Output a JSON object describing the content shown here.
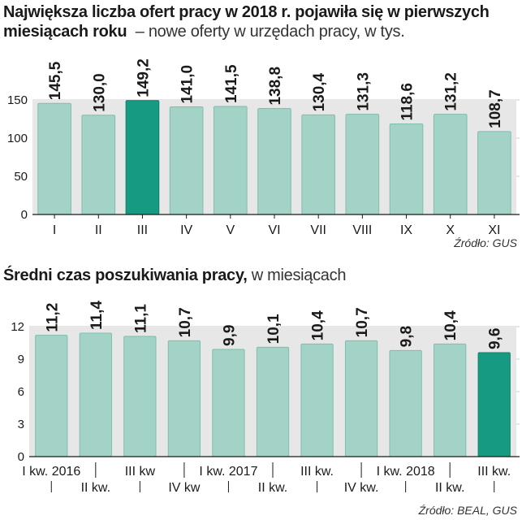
{
  "chart_data": [
    {
      "type": "bar",
      "title": "Największa liczba ofert pracy w 2018 r. pojawiła się w pierwszych miesiącach roku",
      "subtitle": "– nowe oferty w urzędach pracy, w tys.",
      "categories": [
        "I",
        "II",
        "III",
        "IV",
        "V",
        "VI",
        "VII",
        "VIII",
        "IX",
        "X",
        "XI"
      ],
      "values": [
        145.5,
        130.0,
        149.2,
        141.0,
        141.5,
        138.8,
        130.4,
        131.3,
        118.6,
        131.2,
        108.7
      ],
      "value_labels": [
        "145,5",
        "130,0",
        "149,2",
        "141,0",
        "141,5",
        "138,8",
        "130,4",
        "131,3",
        "118,6",
        "131,2",
        "108,7"
      ],
      "highlight_index": 2,
      "yticks": [
        0,
        50,
        100,
        150
      ],
      "ylim": [
        0,
        150
      ],
      "source": "Źródło: GUS"
    },
    {
      "type": "bar",
      "title": "Średni czas poszukiwania pracy,",
      "subtitle": "w miesiącach",
      "categories": [
        "I kw. 2016",
        "II kw.",
        "III kw",
        "IV kw",
        "I kw. 2017",
        "II kw.",
        "III kw.",
        "IV kw.",
        "I kw. 2018",
        "II kw.",
        "III kw."
      ],
      "values": [
        11.2,
        11.4,
        11.1,
        10.7,
        9.9,
        10.1,
        10.4,
        10.7,
        9.8,
        10.4,
        9.6
      ],
      "value_labels": [
        "11,2",
        "11,4",
        "11,1",
        "10,7",
        "9,9",
        "10,1",
        "10,4",
        "10,7",
        "9,8",
        "10,4",
        "9,6"
      ],
      "highlight_index": 10,
      "yticks": [
        0,
        3,
        6,
        9,
        12
      ],
      "ylim": [
        0,
        12
      ],
      "source": "Źródło: BEAL, GUS"
    }
  ],
  "colors": {
    "bar": "#a3d3c6",
    "bar_highlight": "#169a82",
    "bar_stroke": "#7fbdad",
    "band": "#e7e7e7",
    "text": "#1a1a1a"
  }
}
